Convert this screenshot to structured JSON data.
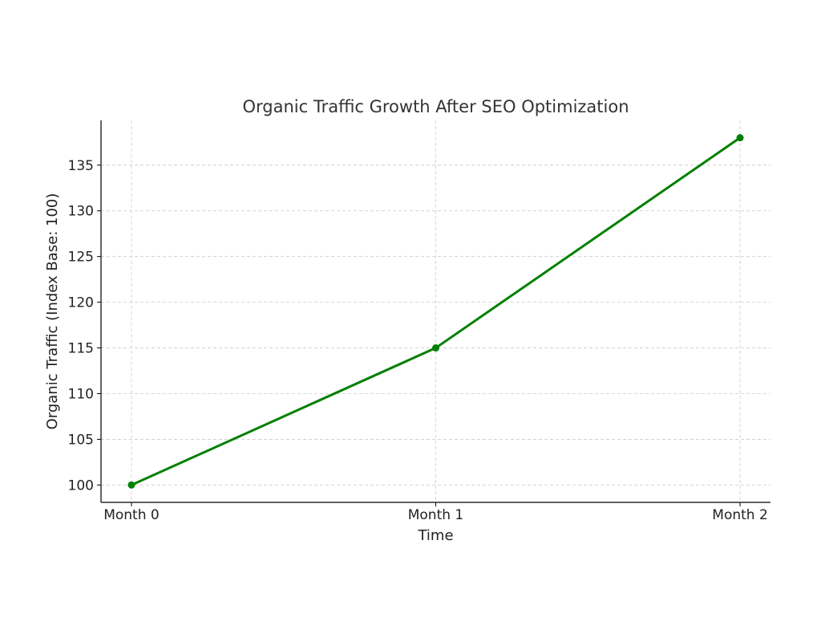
{
  "chart_data": {
    "type": "line",
    "title": "Organic Traffic Growth After SEO Optimization",
    "xlabel": "Time",
    "ylabel": "Organic Traffic (Index Base: 100)",
    "categories": [
      "Month 0",
      "Month 1",
      "Month 2"
    ],
    "series": [
      {
        "name": "Organic Traffic",
        "values": [
          100,
          115,
          138
        ],
        "color": "#008000",
        "marker": "circle"
      }
    ],
    "yticks": [
      100,
      105,
      110,
      115,
      120,
      125,
      130,
      135
    ],
    "ylim": [
      98.1,
      139.9
    ],
    "xlim": [
      -0.1,
      2.1
    ],
    "grid": true,
    "grid_style": "dashed"
  }
}
